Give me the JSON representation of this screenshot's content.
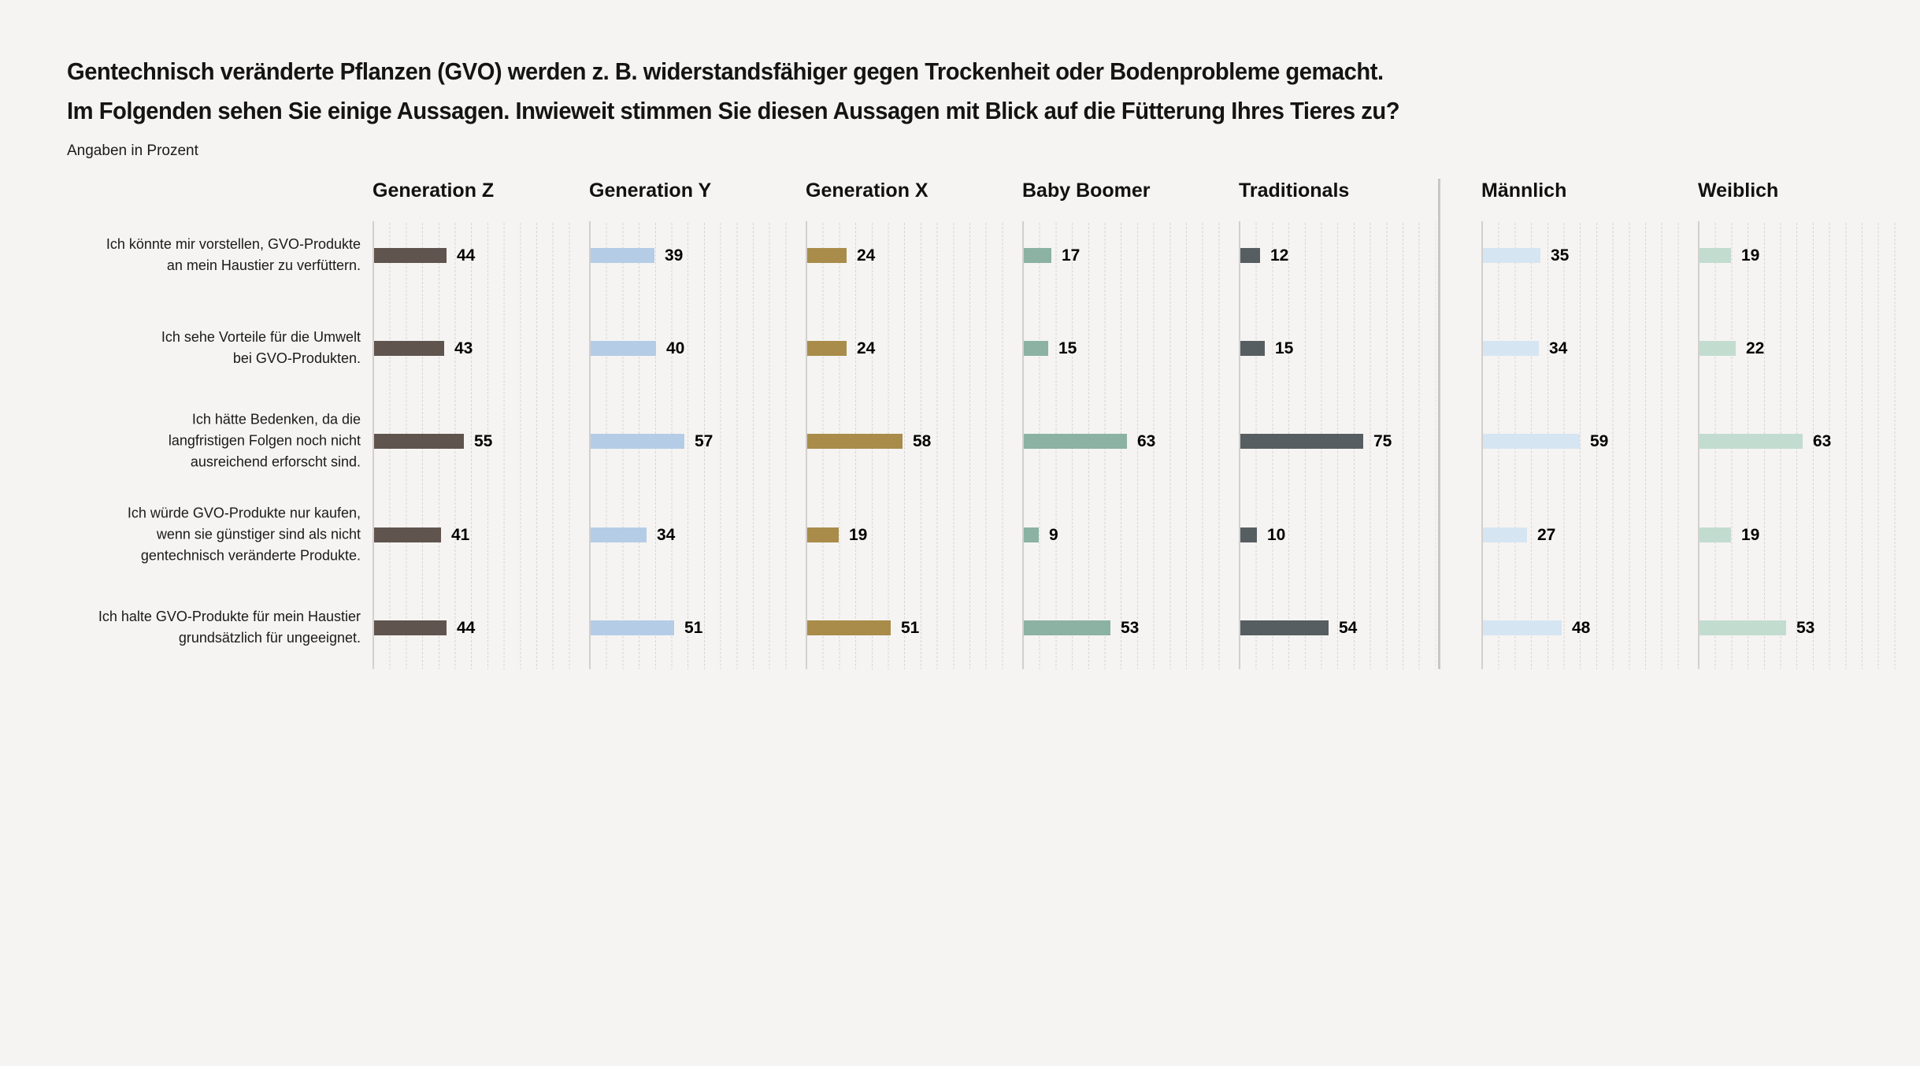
{
  "title": {
    "line1": "Gentechnisch veränderte Pflanzen (GVO) werden z. B. widerstandsfähiger gegen Trockenheit oder Bodenprobleme gemacht.",
    "line2": "Im Folgenden sehen Sie einige Aussagen. Inwieweit stimmen Sie diesen Aussagen mit Blick auf die Fütterung Ihres Tieres zu?"
  },
  "subtitle": "Angaben in Prozent",
  "chart_data": {
    "type": "bar",
    "orientation": "horizontal",
    "unit": "percent",
    "title": "Gentechnisch veränderte Pflanzen (GVO) werden z. B. widerstandsfähiger gegen Trockenheit oder Bodenprobleme gemacht. Im Folgenden sehen Sie einige Aussagen. Inwieweit stimmen Sie diesen Aussagen mit Blick auf die Fütterung Ihres Tieres zu?",
    "value_note": "Angaben in Prozent",
    "xlim": [
      0,
      100
    ],
    "gridline_step": 10,
    "grid": "dotted-vertical",
    "categories": [
      "Ich könnte mir vorstellen, GVO-Produkte an mein Haustier zu verfüttern.",
      "Ich sehe Vorteile für die Umwelt bei GVO-Produkten.",
      "Ich hätte Bedenken, da die langfristigen Folgen noch nicht ausreichend erforscht sind.",
      "Ich würde GVO-Produkte nur kaufen, wenn sie günstiger sind als nicht gentechnisch veränderte Produkte.",
      "Ich halte GVO-Produkte für mein Haustier grundsätzlich für ungeeignet."
    ],
    "category_lines": [
      [
        "Ich könnte mir vorstellen, GVO-Produkte",
        "an mein Haustier zu verfüttern."
      ],
      [
        "Ich sehe Vorteile für die Umwelt",
        "bei GVO-Produkten."
      ],
      [
        "Ich hätte Bedenken, da die",
        "langfristigen Folgen noch nicht",
        "ausreichend erforscht sind."
      ],
      [
        "Ich würde GVO-Produkte nur kaufen,",
        "wenn sie günstiger sind als nicht",
        "gentechnisch veränderte Produkte."
      ],
      [
        "Ich halte GVO-Produkte für mein Haustier",
        "grundsätzlich für ungeeignet."
      ]
    ],
    "series": [
      {
        "name": "Generation Z",
        "color": "#60544e",
        "values": [
          44,
          43,
          55,
          41,
          44
        ]
      },
      {
        "name": "Generation Y",
        "color": "#b5cce6",
        "values": [
          39,
          40,
          57,
          34,
          51
        ]
      },
      {
        "name": "Generation X",
        "color": "#a98c4a",
        "values": [
          24,
          24,
          58,
          19,
          51
        ]
      },
      {
        "name": "Baby Boomer",
        "color": "#8bb2a3",
        "values": [
          17,
          15,
          63,
          9,
          53
        ]
      },
      {
        "name": "Traditionals",
        "color": "#575e62",
        "values": [
          12,
          15,
          75,
          10,
          54
        ]
      },
      {
        "name": "Männlich",
        "color": "#d6e5f2",
        "values": [
          35,
          34,
          59,
          27,
          48
        ]
      },
      {
        "name": "Weiblich",
        "color": "#c3dcd0",
        "values": [
          19,
          22,
          63,
          19,
          53
        ]
      }
    ],
    "divider_after_series": "Traditionals",
    "background_color": "#f5f4f2",
    "legend_position": "column-headers"
  }
}
